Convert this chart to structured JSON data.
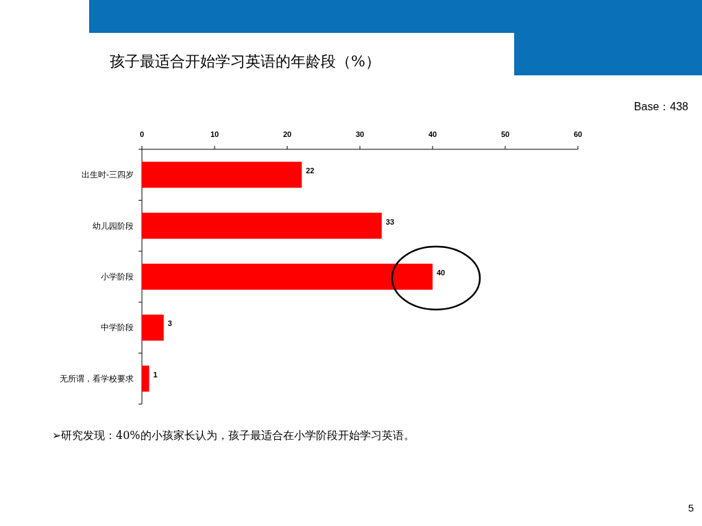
{
  "chart_data": {
    "type": "bar",
    "orientation": "horizontal",
    "title": "孩子最适合开始学习英语的年龄段（%）",
    "categories": [
      "出生时-三四岁",
      "幼儿园阶段",
      "小学阶段",
      "中学阶段",
      "无所谓，看学校要求"
    ],
    "values": [
      22,
      33,
      40,
      3,
      1
    ],
    "color": "#ff0000",
    "xlim": [
      0,
      60
    ],
    "xticks": [
      0,
      10,
      20,
      30,
      40,
      50,
      60
    ],
    "data_labels": true,
    "annotations": [
      "Base：438",
      "➢研究发现：40%的小孩家长认为，孩子最适合在小学阶段开始学习英语。",
      "5"
    ]
  }
}
